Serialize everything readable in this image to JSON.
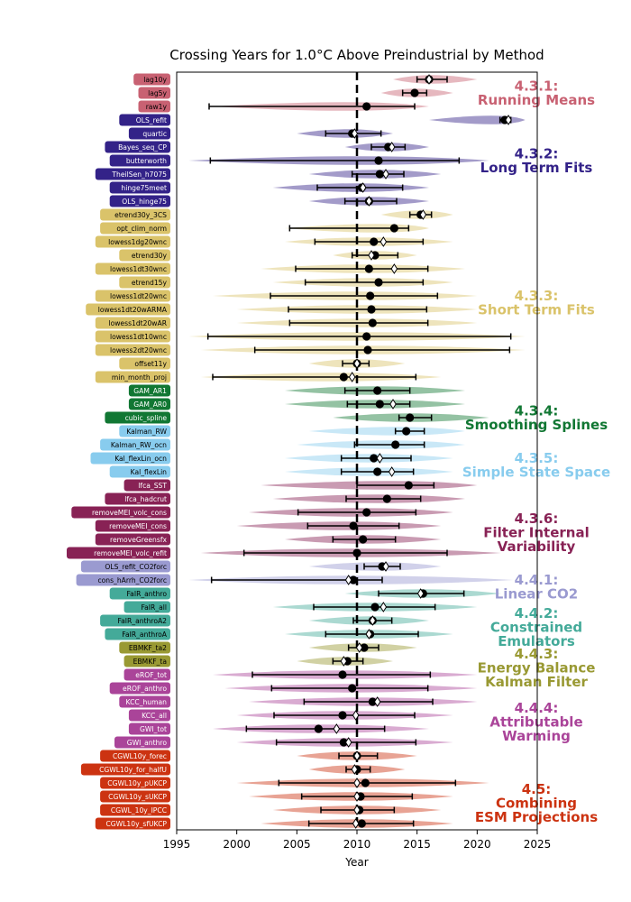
{
  "chart_data": {
    "type": "scatter",
    "title": "Crossing Years for 1.0°C Above Preindustrial by Method",
    "xlabel": "Year",
    "xlim": [
      1995,
      2025
    ],
    "xticks": [
      1995,
      2000,
      2005,
      2010,
      2015,
      2020,
      2025
    ],
    "reference_year": 2010,
    "groups": [
      {
        "id": "4.3.1",
        "label_lines": [
          "4.3.1:",
          "Running Means"
        ],
        "color": "#c86172",
        "label_color": "#c86172",
        "text_color": "#000000",
        "first": 0,
        "last": 2
      },
      {
        "id": "4.3.2",
        "label_lines": [
          "4.3.2:",
          "Long Term Fits"
        ],
        "color": "#332288",
        "label_color": "#332288",
        "text_color": "#ffffff",
        "first": 3,
        "last": 9
      },
      {
        "id": "4.3.3",
        "label_lines": [
          "4.3.3:",
          "Short Term Fits"
        ],
        "color": "#dac36a",
        "label_color": "#dac36a",
        "text_color": "#000000",
        "first": 10,
        "last": 23
      },
      {
        "id": "4.3.4",
        "label_lines": [
          "4.3.4:",
          "Smoothing Splines"
        ],
        "color": "#117733",
        "label_color": "#117733",
        "text_color": "#ffffff",
        "first": 24,
        "last": 26
      },
      {
        "id": "4.3.5",
        "label_lines": [
          "4.3.5:",
          "Simple State Space"
        ],
        "color": "#88ccee",
        "label_color": "#88ccee",
        "text_color": "#000000",
        "first": 27,
        "last": 30
      },
      {
        "id": "4.3.6",
        "label_lines": [
          "4.3.6:",
          "Filter Internal",
          "Variability"
        ],
        "color": "#882255",
        "label_color": "#882255",
        "text_color": "#ffffff",
        "first": 31,
        "last": 36
      },
      {
        "id": "4.4.1",
        "label_lines": [
          "4.4.1:",
          "Linear CO2"
        ],
        "color": "#9a9ad0",
        "label_color": "#9a9ad0",
        "text_color": "#000000",
        "first": 37,
        "last": 38
      },
      {
        "id": "4.4.2",
        "label_lines": [
          "4.4.2:",
          "Constrained",
          "Emulators"
        ],
        "color": "#44aa99",
        "label_color": "#44aa99",
        "text_color": "#000000",
        "first": 39,
        "last": 42
      },
      {
        "id": "4.4.3",
        "label_lines": [
          "4.4.3:",
          "Energy Balance",
          "Kalman Filter"
        ],
        "color": "#999933",
        "label_color": "#999933",
        "text_color": "#000000",
        "first": 43,
        "last": 44
      },
      {
        "id": "4.4.4",
        "label_lines": [
          "4.4.4:",
          "Attributable",
          "Warming"
        ],
        "color": "#aa4499",
        "label_color": "#aa4499",
        "text_color": "#ffffff",
        "first": 45,
        "last": 50
      },
      {
        "id": "4.5",
        "label_lines": [
          "4.5:",
          "Combining",
          "ESM Projections"
        ],
        "color": "#cc3311",
        "label_color": "#cc3311",
        "text_color": "#ffffff",
        "first": 51,
        "last": 56
      }
    ],
    "methods": [
      {
        "name": "lag10y",
        "group": "4.3.1",
        "central": 2016.0,
        "lo": 2015.0,
        "hi": 2017.5,
        "median": 2016.0,
        "violin": [
          2013,
          2020
        ]
      },
      {
        "name": "lag5y",
        "group": "4.3.1",
        "central": 2014.8,
        "lo": 2013.8,
        "hi": 2015.8,
        "median": null,
        "violin": [
          2012,
          2018
        ]
      },
      {
        "name": "raw1y",
        "group": "4.3.1",
        "central": 2010.8,
        "lo": 1997.7,
        "hi": 2014.8,
        "median": null,
        "violin": [
          1998,
          2016
        ]
      },
      {
        "name": "OLS_refit",
        "group": "4.3.2",
        "central": 2022.3,
        "lo": 2021.9,
        "hi": 2022.8,
        "median": 2022.6,
        "violin": [
          2016,
          2024
        ]
      },
      {
        "name": "quartic",
        "group": "4.3.2",
        "central": 2009.6,
        "lo": 2007.4,
        "hi": 2012.0,
        "median": 2009.8,
        "violin": [
          2005,
          2013
        ]
      },
      {
        "name": "Bayes_seq_CP",
        "group": "4.3.2",
        "central": 2012.6,
        "lo": 2011.2,
        "hi": 2014.0,
        "median": 2012.9,
        "violin": [
          2009,
          2016
        ]
      },
      {
        "name": "butterworth",
        "group": "4.3.2",
        "central": 2011.8,
        "lo": 1997.8,
        "hi": 2018.5,
        "median": null,
        "violin": [
          1996,
          2021
        ]
      },
      {
        "name": "TheilSen_h7075",
        "group": "4.3.2",
        "central": 2011.9,
        "lo": 2009.6,
        "hi": 2013.9,
        "median": 2012.4,
        "violin": [
          2006,
          2017
        ]
      },
      {
        "name": "hinge75meet",
        "group": "4.3.2",
        "central": 2010.4,
        "lo": 2006.7,
        "hi": 2013.8,
        "median": 2010.5,
        "violin": [
          2003,
          2016
        ]
      },
      {
        "name": "OLS_hinge75",
        "group": "4.3.2",
        "central": 2011.0,
        "lo": 2009.0,
        "hi": 2013.3,
        "median": 2011.0,
        "violin": [
          2006,
          2016
        ]
      },
      {
        "name": "etrend30y_3CS",
        "group": "4.3.3",
        "central": 2015.3,
        "lo": 2014.4,
        "hi": 2016.2,
        "median": 2015.5,
        "violin": [
          2012,
          2018
        ]
      },
      {
        "name": "opt_clim_norm",
        "group": "4.3.3",
        "central": 2013.1,
        "lo": 2004.4,
        "hi": 2014.3,
        "median": null,
        "violin": [
          2004,
          2016
        ]
      },
      {
        "name": "lowess1dg20wnc",
        "group": "4.3.3",
        "central": 2011.4,
        "lo": 2006.5,
        "hi": 2015.5,
        "median": 2012.2,
        "violin": [
          2004,
          2018
        ]
      },
      {
        "name": "etrend30y",
        "group": "4.3.3",
        "central": 2011.5,
        "lo": 2009.6,
        "hi": 2013.4,
        "median": 2011.2,
        "violin": [
          2008,
          2015
        ]
      },
      {
        "name": "lowess1dt30wnc",
        "group": "4.3.3",
        "central": 2011.0,
        "lo": 2004.9,
        "hi": 2015.9,
        "median": 2013.1,
        "violin": [
          2002,
          2019
        ]
      },
      {
        "name": "etrend15y",
        "group": "4.3.3",
        "central": 2011.8,
        "lo": 2005.7,
        "hi": 2015.5,
        "median": null,
        "violin": [
          2003,
          2018
        ]
      },
      {
        "name": "lowess1dt20wnc",
        "group": "4.3.3",
        "central": 2011.1,
        "lo": 2002.8,
        "hi": 2016.7,
        "median": null,
        "violin": [
          1998,
          2020
        ]
      },
      {
        "name": "lowess1dt20wARMA",
        "group": "4.3.3",
        "central": 2011.2,
        "lo": 2004.3,
        "hi": 2015.8,
        "median": null,
        "violin": [
          2000,
          2020
        ]
      },
      {
        "name": "lowess1dt20wAR",
        "group": "4.3.3",
        "central": 2011.3,
        "lo": 2004.4,
        "hi": 2015.9,
        "median": null,
        "violin": [
          2000,
          2020
        ]
      },
      {
        "name": "lowess1dt10wnc",
        "group": "4.3.3",
        "central": 2010.8,
        "lo": 1997.6,
        "hi": 2022.8,
        "median": null,
        "violin": [
          1996,
          2024
        ]
      },
      {
        "name": "lowess2dt20wnc",
        "group": "4.3.3",
        "central": 2010.9,
        "lo": 2001.5,
        "hi": 2022.7,
        "median": null,
        "violin": [
          1997,
          2024
        ]
      },
      {
        "name": "offset11y",
        "group": "4.3.3",
        "central": 2010.0,
        "lo": 2008.8,
        "hi": 2011.0,
        "median": 2010.0,
        "violin": [
          2006,
          2014
        ]
      },
      {
        "name": "min_month_proj",
        "group": "4.3.3",
        "central": 2008.9,
        "lo": 1998.0,
        "hi": 2014.9,
        "median": 2009.6,
        "violin": [
          1997,
          2017
        ]
      },
      {
        "name": "GAM_AR1",
        "group": "4.3.4",
        "central": 2011.7,
        "lo": 2009.0,
        "hi": 2014.4,
        "median": null,
        "violin": [
          2004,
          2019
        ]
      },
      {
        "name": "GAM_AR0",
        "group": "4.3.4",
        "central": 2011.9,
        "lo": 2009.2,
        "hi": 2014.4,
        "median": 2013.0,
        "violin": [
          2004,
          2019
        ]
      },
      {
        "name": "cubic_spline",
        "group": "4.3.4",
        "central": 2014.4,
        "lo": 2013.5,
        "hi": 2016.2,
        "median": null,
        "violin": [
          2008,
          2021
        ]
      },
      {
        "name": "Kalman_RW",
        "group": "4.3.5",
        "central": 2014.1,
        "lo": 2013.2,
        "hi": 2015.6,
        "median": null,
        "violin": [
          2006,
          2019
        ]
      },
      {
        "name": "Kalman_RW_ocn",
        "group": "4.3.5",
        "central": 2013.2,
        "lo": 2009.8,
        "hi": 2015.6,
        "median": null,
        "violin": [
          2005,
          2019
        ]
      },
      {
        "name": "Kal_flexLin_ocn",
        "group": "4.3.5",
        "central": 2011.4,
        "lo": 2008.7,
        "hi": 2014.5,
        "median": 2011.9,
        "violin": [
          2004,
          2018
        ]
      },
      {
        "name": "Kal_flexLin",
        "group": "4.3.5",
        "central": 2011.7,
        "lo": 2008.7,
        "hi": 2014.7,
        "median": 2012.9,
        "violin": [
          2004,
          2018
        ]
      },
      {
        "name": "lfca_SST",
        "group": "4.3.6",
        "central": 2014.3,
        "lo": 2010.0,
        "hi": 2016.4,
        "median": null,
        "violin": [
          2002,
          2020
        ]
      },
      {
        "name": "lfca_hadcrut",
        "group": "4.3.6",
        "central": 2012.5,
        "lo": 2009.1,
        "hi": 2015.3,
        "median": null,
        "violin": [
          2003,
          2019
        ]
      },
      {
        "name": "removeMEI_volc_cons",
        "group": "4.3.6",
        "central": 2010.8,
        "lo": 2005.1,
        "hi": 2014.9,
        "median": null,
        "violin": [
          2001,
          2018
        ]
      },
      {
        "name": "removeMEI_cons",
        "group": "4.3.6",
        "central": 2009.7,
        "lo": 2005.9,
        "hi": 2013.5,
        "median": null,
        "violin": [
          2000,
          2017
        ]
      },
      {
        "name": "removeGreensfx",
        "group": "4.3.6",
        "central": 2010.5,
        "lo": 2008.0,
        "hi": 2013.2,
        "median": null,
        "violin": [
          2004,
          2017
        ]
      },
      {
        "name": "removeMEI_volc_refit",
        "group": "4.3.6",
        "central": 2010.0,
        "lo": 2000.6,
        "hi": 2017.5,
        "median": null,
        "violin": [
          1997,
          2022
        ]
      },
      {
        "name": "OLS_refit_CO2forc",
        "group": "4.4.1",
        "central": 2012.1,
        "lo": 2010.6,
        "hi": 2013.6,
        "median": 2012.4,
        "violin": [
          2006,
          2017
        ]
      },
      {
        "name": "cons_hArrh_CO2forc",
        "group": "4.4.1",
        "central": 2009.7,
        "lo": 1997.9,
        "hi": 2012.1,
        "median": 2009.3,
        "violin": [
          1996,
          2023
        ]
      },
      {
        "name": "FaIR_anthro",
        "group": "4.4.2",
        "central": 2015.5,
        "lo": 2011.8,
        "hi": 2018.9,
        "median": 2015.3,
        "violin": [
          2009,
          2022
        ]
      },
      {
        "name": "FaIR_all",
        "group": "4.4.2",
        "central": 2011.5,
        "lo": 2006.4,
        "hi": 2016.5,
        "median": 2012.2,
        "violin": [
          2003,
          2020
        ]
      },
      {
        "name": "FaIR_anthroA2",
        "group": "4.4.2",
        "central": 2011.3,
        "lo": 2009.7,
        "hi": 2012.9,
        "median": 2011.3,
        "violin": [
          2006,
          2016
        ]
      },
      {
        "name": "FaIR_anthroA",
        "group": "4.4.2",
        "central": 2011.1,
        "lo": 2007.4,
        "hi": 2015.1,
        "median": 2011.0,
        "violin": [
          2004,
          2018
        ]
      },
      {
        "name": "EBMKF_ta2",
        "group": "4.4.3",
        "central": 2010.6,
        "lo": 2009.3,
        "hi": 2011.8,
        "median": 2010.2,
        "violin": [
          2006,
          2015
        ]
      },
      {
        "name": "EBMKF_ta",
        "group": "4.4.3",
        "central": 2009.2,
        "lo": 2008.0,
        "hi": 2010.5,
        "median": 2008.9,
        "violin": [
          2005,
          2013
        ]
      },
      {
        "name": "eROF_tot",
        "group": "4.4.4",
        "central": 2008.8,
        "lo": 2001.3,
        "hi": 2016.1,
        "median": null,
        "violin": [
          1998,
          2020
        ]
      },
      {
        "name": "eROF_anthro",
        "group": "4.4.4",
        "central": 2009.6,
        "lo": 2002.9,
        "hi": 2015.9,
        "median": null,
        "violin": [
          1999,
          2020
        ]
      },
      {
        "name": "KCC_human",
        "group": "4.4.4",
        "central": 2011.3,
        "lo": 2005.6,
        "hi": 2016.3,
        "median": 2011.7,
        "violin": [
          2001,
          2020
        ]
      },
      {
        "name": "KCC_all",
        "group": "4.4.4",
        "central": 2008.8,
        "lo": 2003.1,
        "hi": 2014.8,
        "median": 2009.9,
        "violin": [
          2000,
          2018
        ]
      },
      {
        "name": "GWI_tot",
        "group": "4.4.4",
        "central": 2006.8,
        "lo": 2000.8,
        "hi": 2012.3,
        "median": 2008.3,
        "violin": [
          1998,
          2016
        ]
      },
      {
        "name": "GWI_anthro",
        "group": "4.4.4",
        "central": 2008.9,
        "lo": 2003.3,
        "hi": 2014.9,
        "median": 2009.3,
        "violin": [
          2000,
          2018
        ]
      },
      {
        "name": "CGWL10y_forec",
        "group": "4.5",
        "central": 2010.0,
        "lo": 2008.5,
        "hi": 2011.7,
        "median": 2010.0,
        "violin": [
          2005,
          2015
        ]
      },
      {
        "name": "CGWL10y_for_halfU",
        "group": "4.5",
        "central": 2010.0,
        "lo": 2009.1,
        "hi": 2011.1,
        "median": 2009.8,
        "violin": [
          2006,
          2014
        ]
      },
      {
        "name": "CGWL10y_pUKCP",
        "group": "4.5",
        "central": 2010.7,
        "lo": 2003.5,
        "hi": 2018.2,
        "median": 2010.0,
        "violin": [
          2000,
          2021
        ]
      },
      {
        "name": "CGWL10y_sUKCP",
        "group": "4.5",
        "central": 2010.3,
        "lo": 2005.4,
        "hi": 2014.6,
        "median": 2010.0,
        "violin": [
          2001,
          2018
        ]
      },
      {
        "name": "CGWL_10y_IPCC",
        "group": "4.5",
        "central": 2010.2,
        "lo": 2007.0,
        "hi": 2013.1,
        "median": 2010.0,
        "violin": [
          2003,
          2017
        ]
      },
      {
        "name": "CGWL10y_sfUKCP",
        "group": "4.5",
        "central": 2010.4,
        "lo": 2006.0,
        "hi": 2014.7,
        "median": 2009.9,
        "violin": [
          2002,
          2018
        ]
      }
    ]
  }
}
